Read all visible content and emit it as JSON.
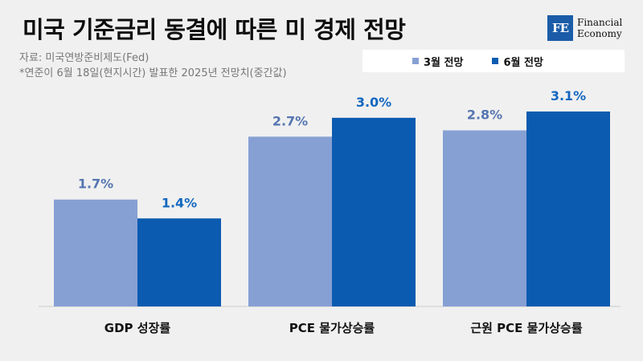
{
  "header": {
    "title": "미국 기준금리 동결에 따른 미 경제 전망",
    "source": "자료: 미국연방준비제도(Fed)",
    "note": "*연준이 6월 18일(현지시간) 발표한 2025년 전망치(중간값)"
  },
  "logo": {
    "mark": "FE",
    "line1": "Financial",
    "line2": "Economy"
  },
  "colors": {
    "march": "#87a0d4",
    "june": "#0b5bb0",
    "march_label": "#5575b0",
    "june_label": "#1467c0"
  },
  "chart_data": {
    "type": "bar",
    "title": "미국 기준금리 동결에 따른 미 경제 전망",
    "categories": [
      "GDP 성장률",
      "PCE 물가상승률",
      "근원 PCE 물가상승률"
    ],
    "series": [
      {
        "name": "3월 전망",
        "values": [
          1.7,
          2.7,
          2.8
        ],
        "labels": [
          "1.7%",
          "2.7%",
          "2.8%"
        ]
      },
      {
        "name": "6월 전망",
        "values": [
          1.4,
          3.0,
          3.1
        ],
        "labels": [
          "1.4%",
          "3.0%",
          "3.1%"
        ]
      }
    ],
    "ylim": [
      0,
      3.1
    ],
    "legend_position": "top-right",
    "grid": false
  }
}
